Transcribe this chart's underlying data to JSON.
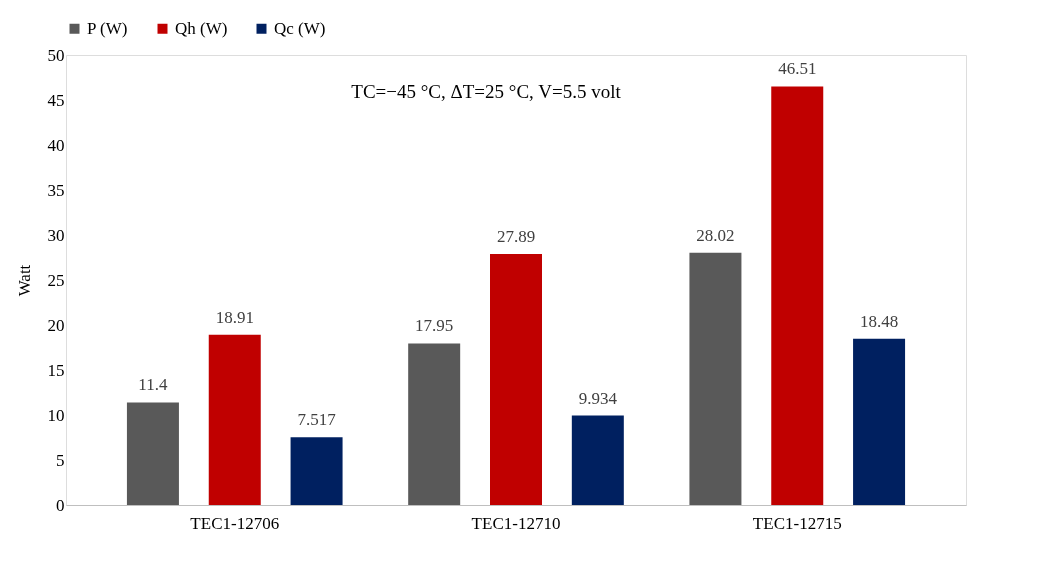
{
  "chart_data": {
    "type": "bar",
    "ylabel": "Watt",
    "categories": [
      "TEC1-12706",
      "TEC1-12710",
      "TEC1-12715"
    ],
    "series": [
      {
        "name": "P (W)",
        "color": "#595959",
        "values": [
          11.4,
          17.95,
          28.02
        ]
      },
      {
        "name": "Qh (W)",
        "color": "#c00000",
        "values": [
          18.91,
          27.89,
          46.51
        ]
      },
      {
        "name": "Qc (W)",
        "color": "#002060",
        "values": [
          7.517,
          9.934,
          18.48
        ]
      }
    ],
    "ylim": [
      0,
      50
    ],
    "yticks": [
      0,
      5,
      10,
      15,
      20,
      25,
      30,
      35,
      40,
      45,
      50
    ],
    "annotations": [
      "TC=−45 °C, ΔT=25 °C, V=5.5 volt"
    ],
    "data_labels": true,
    "grid": false,
    "legend": "top"
  }
}
